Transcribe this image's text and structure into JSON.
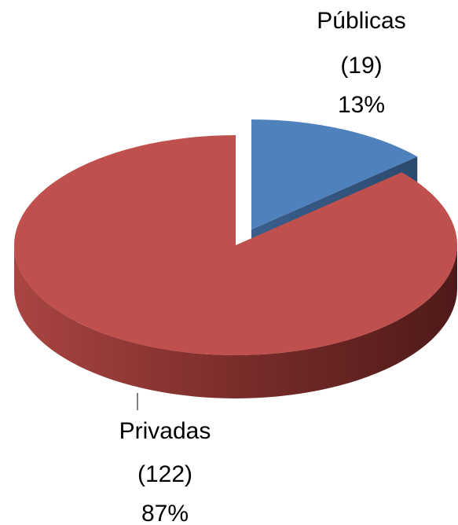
{
  "chart_data": {
    "type": "pie",
    "categories": [
      "Públicas",
      "Privadas"
    ],
    "values": [
      19,
      122
    ],
    "value_labels": [
      "(19)",
      "(122)"
    ],
    "percents": [
      13,
      87
    ],
    "percent_labels": [
      "13%",
      "87%"
    ],
    "colors": [
      "#4f81bd",
      "#c0504d"
    ]
  }
}
